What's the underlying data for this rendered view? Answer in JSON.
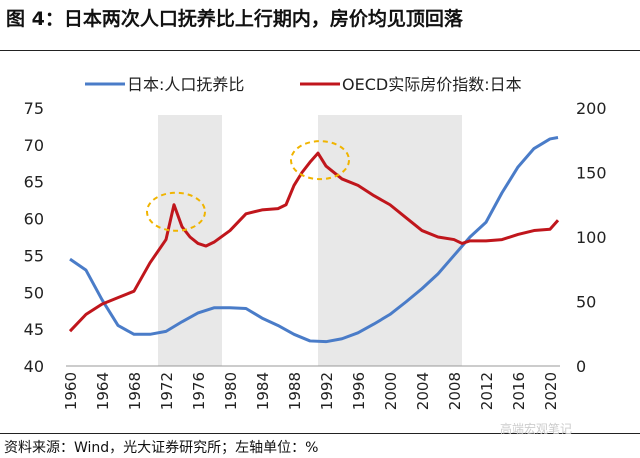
{
  "title": "图 4：日本两次人口抚养比上行期内，房价均见顶回落",
  "source": "资料来源：Wind，光大证券研究所；左轴单位：%",
  "watermark": "高端宏观笔记",
  "chart_data": {
    "type": "line",
    "legend_position": "top",
    "grid": false,
    "x_ticks": [
      "1960",
      "1964",
      "1968",
      "1972",
      "1976",
      "1980",
      "1984",
      "1988",
      "1992",
      "1996",
      "2000",
      "2004",
      "2008",
      "2012",
      "2016",
      "2020"
    ],
    "y_left": {
      "lim": [
        40,
        75
      ],
      "ticks": [
        "40",
        "45",
        "50",
        "55",
        "60",
        "65",
        "70",
        "75"
      ]
    },
    "y_right": {
      "lim": [
        0,
        200
      ],
      "ticks": [
        "0",
        "50",
        "100",
        "150",
        "200"
      ]
    },
    "shaded_periods": [
      [
        1971,
        1979
      ],
      [
        1991,
        2009
      ]
    ],
    "highlight_peaks": [
      1973,
      1991
    ],
    "series": [
      {
        "name": "日本:人口抚养比",
        "axis": "left",
        "color": "#4a7cc8",
        "x": [
          1960,
          1962,
          1964,
          1966,
          1968,
          1970,
          1972,
          1974,
          1976,
          1978,
          1980,
          1982,
          1984,
          1986,
          1988,
          1990,
          1992,
          1994,
          1996,
          1998,
          2000,
          2002,
          2004,
          2006,
          2008,
          2010,
          2012,
          2014,
          2016,
          2018,
          2020,
          2021
        ],
        "y": [
          54.5,
          53,
          49,
          45.5,
          44.3,
          44.3,
          44.7,
          46,
          47.2,
          47.9,
          47.9,
          47.8,
          46.5,
          45.5,
          44.3,
          43.4,
          43.3,
          43.7,
          44.5,
          45.7,
          47,
          48.7,
          50.5,
          52.5,
          55,
          57.5,
          59.5,
          63.5,
          67,
          69.5,
          70.8,
          71
        ]
      },
      {
        "name": "OECD实际房价指数:日本",
        "axis": "right",
        "color": "#c0161c",
        "x": [
          1960,
          1962,
          1964,
          1966,
          1968,
          1970,
          1972,
          1973,
          1974,
          1975,
          1976,
          1977,
          1978,
          1980,
          1982,
          1984,
          1986,
          1987,
          1988,
          1989,
          1990,
          1991,
          1992,
          1994,
          1996,
          1998,
          2000,
          2002,
          2004,
          2006,
          2008,
          2009,
          2010,
          2012,
          2014,
          2016,
          2018,
          2020,
          2021
        ],
        "y": [
          27,
          40,
          48,
          53,
          58,
          80,
          98,
          125,
          108,
          100,
          95,
          93,
          96,
          105,
          118,
          121,
          122,
          125,
          140,
          150,
          158,
          165,
          155,
          145,
          140,
          132,
          125,
          115,
          105,
          100,
          98,
          95,
          97,
          97,
          98,
          102,
          105,
          106,
          113
        ]
      }
    ]
  }
}
